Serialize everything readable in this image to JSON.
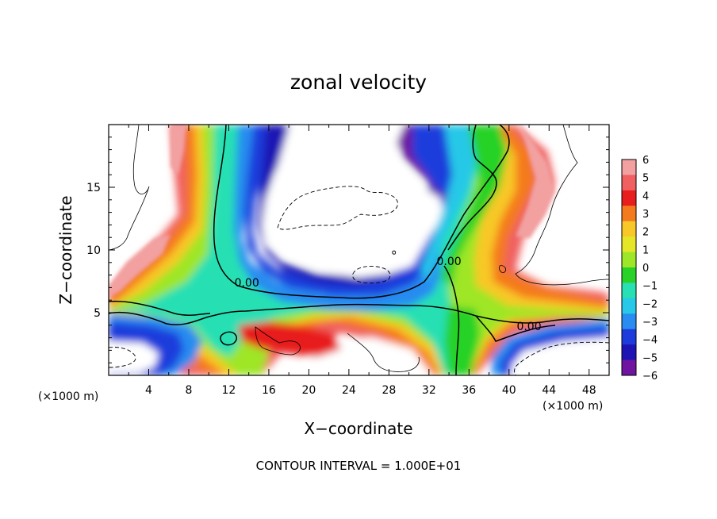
{
  "chart_data": {
    "type": "heatmap",
    "title": "zonal velocity",
    "xlabel": "X−coordinate",
    "ylabel": "Z−coordinate",
    "x_unit_left": "(×1000 m)",
    "x_unit_right": "(×1000 m)",
    "contour_interval_text": "CONTOUR INTERVAL = 1.000E+01",
    "xlim": [
      0,
      50
    ],
    "ylim": [
      0,
      20
    ],
    "x_ticks": [
      4,
      8,
      12,
      16,
      20,
      24,
      28,
      32,
      36,
      40,
      44,
      48
    ],
    "x_tick_labels": [
      "4",
      "8",
      "12",
      "16",
      "20",
      "24",
      "28",
      "32",
      "36",
      "40",
      "44",
      "48"
    ],
    "y_ticks": [
      5,
      10,
      15
    ],
    "y_tick_labels": [
      "5",
      "10",
      "15"
    ],
    "contour_labels": [
      {
        "text": "0.00",
        "x": 13.8,
        "y": 7.1
      },
      {
        "text": "0.00",
        "x": 34.0,
        "y": 8.8
      },
      {
        "text": "0.00",
        "x": 42.0,
        "y": 3.6
      }
    ],
    "colorbar": {
      "levels": [
        6,
        5,
        4,
        3,
        2,
        1,
        0,
        -1,
        -2,
        -3,
        -4,
        -5,
        -6
      ],
      "labels": [
        "6",
        "5",
        "4",
        "3",
        "2",
        "1",
        "0",
        "−1",
        "−2",
        "−3",
        "−4",
        "−5",
        "−6"
      ],
      "colors": [
        "#f2a0a0",
        "#f06060",
        "#e81e1e",
        "#f47a1e",
        "#f8c828",
        "#e6e628",
        "#9ee628",
        "#28d228",
        "#28e0b4",
        "#28c8e8",
        "#288cf0",
        "#1e3cdc",
        "#1e14b4",
        "#6e14a0"
      ]
    }
  }
}
